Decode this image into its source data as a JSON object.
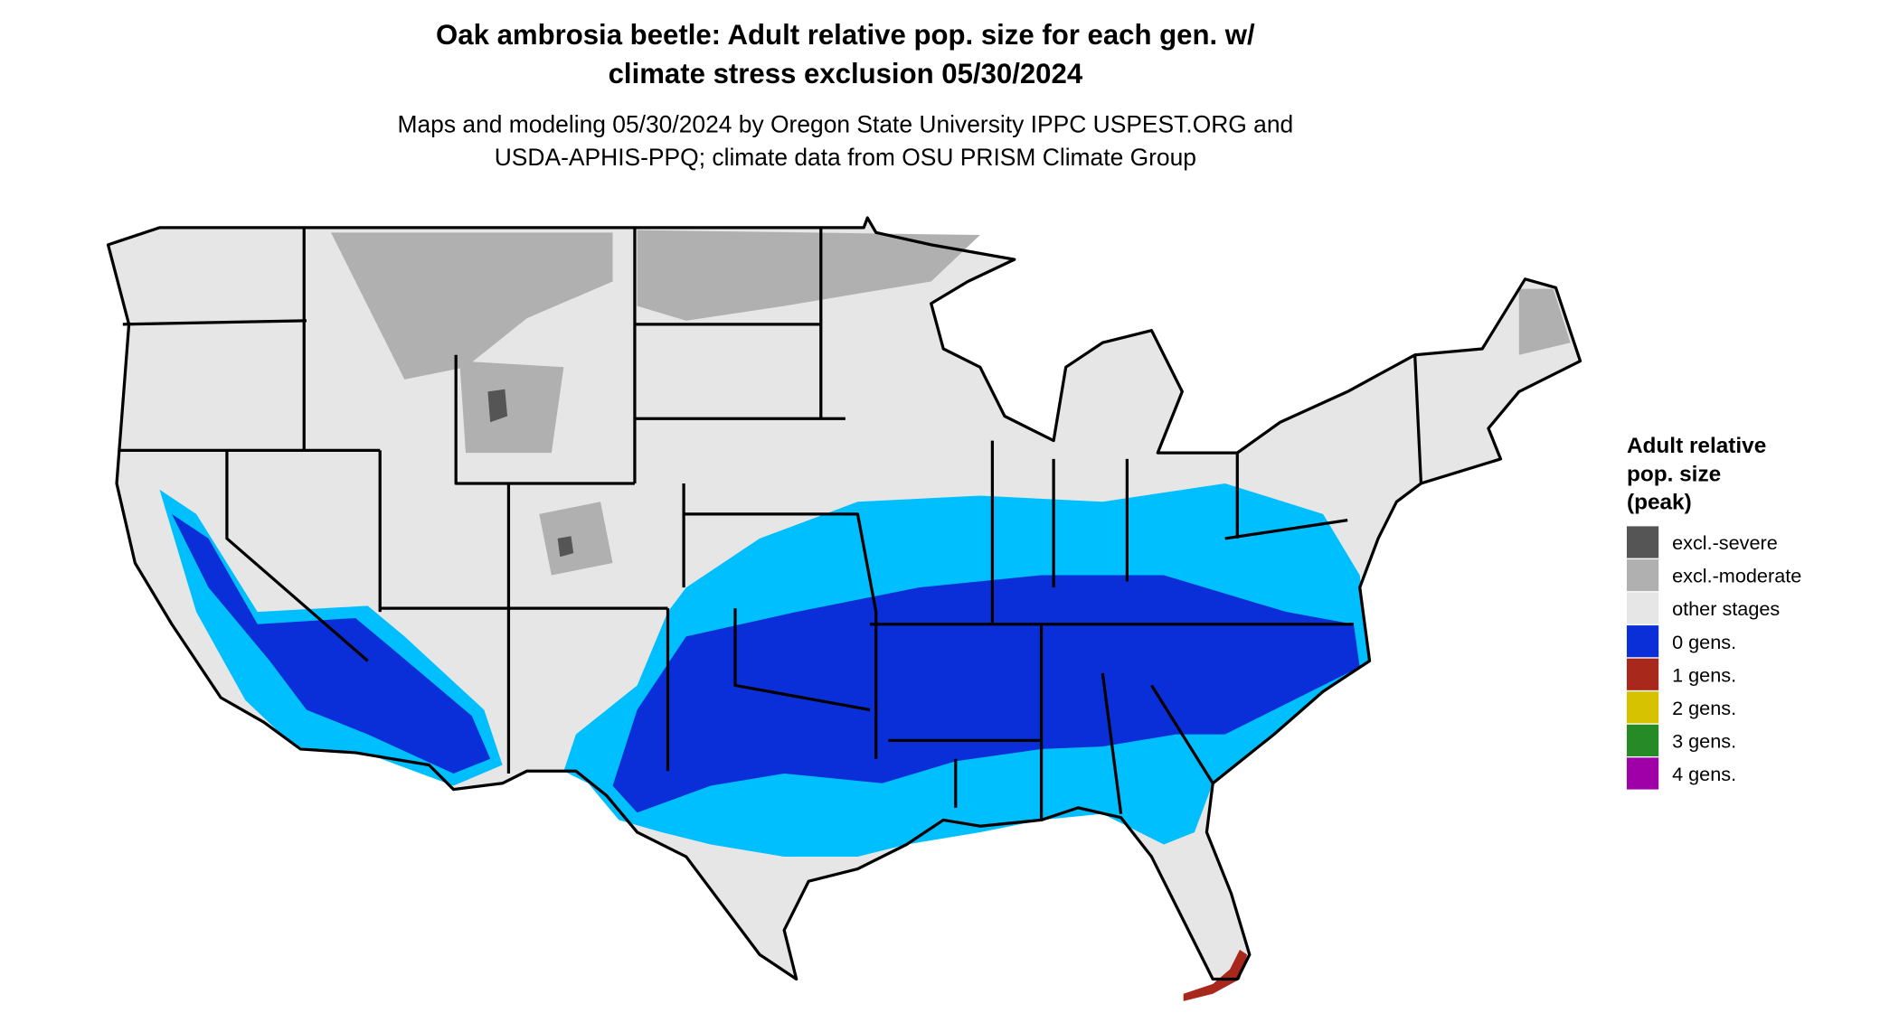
{
  "title": [
    "Oak ambrosia beetle: Adult relative pop. size for each gen. w/",
    "climate stress exclusion 05/30/2024"
  ],
  "subtitle": [
    "Maps and modeling 05/30/2024 by Oregon State University IPPC USPEST.ORG and",
    "USDA-APHIS-PPQ; climate data from OSU PRISM Climate Group"
  ],
  "legend": {
    "title": [
      "Adult relative",
      "pop. size",
      "(peak)"
    ],
    "items": [
      {
        "label": "excl.-severe",
        "color": "#555555"
      },
      {
        "label": "excl.-moderate",
        "color": "#b0b0b0"
      },
      {
        "label": "other stages",
        "color": "#e6e6e6"
      },
      {
        "label": "0 gens.",
        "color": "#0a2fd8"
      },
      {
        "label": "1 gens.",
        "color": "#a8281c"
      },
      {
        "label": "2 gens.",
        "color": "#d6c200"
      },
      {
        "label": "3 gens.",
        "color": "#268a26"
      },
      {
        "label": "4 gens.",
        "color": "#a000a8"
      }
    ]
  }
}
